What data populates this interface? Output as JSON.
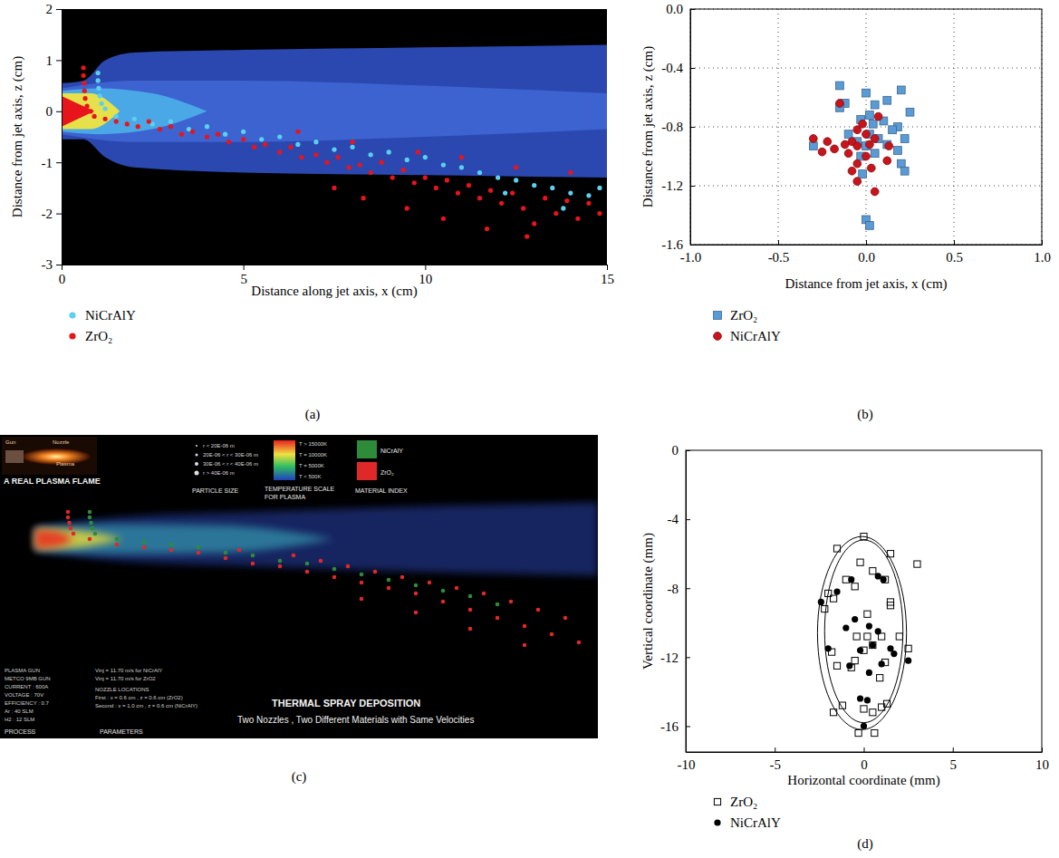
{
  "chart_data": [
    {
      "type": "scatter",
      "panel_label": "(a)",
      "x_label": "Distance along jet axis, x (cm)",
      "y_label": "Distance from jet axis, z (cm)",
      "xlim": [
        0,
        15
      ],
      "xticks": [
        0,
        5,
        10,
        15
      ],
      "ylim": [
        -3,
        2
      ],
      "yticks": [
        -3,
        -2,
        -1,
        0,
        1,
        2
      ],
      "legend": "bottom",
      "plume": [
        {
          "color": "#2b48b0",
          "x": [
            0,
            0.6,
            1.2,
            2,
            5,
            10,
            15
          ],
          "upper": [
            0.55,
            0.6,
            1.0,
            1.15,
            1.2,
            1.25,
            1.3
          ],
          "lower": [
            -0.55,
            -0.55,
            -0.9,
            -1.1,
            -1.2,
            -1.25,
            -1.3
          ]
        },
        {
          "color": "#3c63d0",
          "x": [
            0,
            2,
            5,
            10,
            15
          ],
          "upper": [
            0.45,
            0.6,
            0.6,
            0.5,
            0.35
          ],
          "lower": [
            -0.45,
            -0.6,
            -0.6,
            -0.5,
            -0.35
          ]
        },
        {
          "color": "#4aa8e6",
          "x": [
            0,
            1,
            2.5,
            4
          ],
          "upper": [
            0.4,
            0.45,
            0.35,
            0
          ],
          "lower": [
            -0.4,
            -0.45,
            -0.35,
            0
          ]
        },
        {
          "color": "#e6e04a",
          "x": [
            0,
            0.8,
            1.6
          ],
          "upper": [
            0.35,
            0.35,
            0
          ],
          "lower": [
            -0.35,
            -0.35,
            0
          ]
        },
        {
          "color": "#e8141c",
          "x": [
            0,
            0.9
          ],
          "upper": [
            0.3,
            0
          ],
          "lower": [
            -0.3,
            0
          ]
        }
      ],
      "series": [
        {
          "name": "NiCrAlY",
          "color": "#5cd0f0",
          "marker": "circle",
          "x": [
            1.0,
            1.0,
            1.02,
            1.05,
            1.1,
            1.2,
            1.5,
            2,
            2.5,
            3,
            3.5,
            4,
            4.5,
            5,
            5.5,
            6,
            6.5,
            7,
            7.5,
            8,
            8.5,
            9,
            9.5,
            10,
            10.5,
            11,
            11.5,
            12,
            12.5,
            13,
            13.5,
            14,
            14.5,
            14.8,
            12.2,
            13.8
          ],
          "values": [
            0.75,
            0.6,
            0.45,
            0.3,
            0.15,
            0.05,
            -0.1,
            -0.15,
            -0.25,
            -0.2,
            -0.35,
            -0.3,
            -0.45,
            -0.4,
            -0.55,
            -0.5,
            -0.65,
            -0.6,
            -0.75,
            -0.7,
            -0.85,
            -0.8,
            -0.95,
            -0.9,
            -1.05,
            -1.1,
            -1.2,
            -1.3,
            -1.35,
            -1.45,
            -1.5,
            -1.6,
            -1.65,
            -1.5,
            -1.6,
            -1.9
          ]
        },
        {
          "name": "ZrO₂",
          "color": "#e8141c",
          "marker": "circle",
          "x": [
            0.6,
            0.6,
            0.62,
            0.63,
            0.65,
            0.7,
            0.8,
            0.9,
            1.2,
            1.5,
            1.8,
            2.1,
            2.4,
            2.7,
            3,
            3.3,
            3.6,
            4,
            4.3,
            4.6,
            5,
            5.3,
            5.6,
            6,
            6.3,
            6.6,
            7,
            7.3,
            7.6,
            7.9,
            8.2,
            8.5,
            8.8,
            9.1,
            9.4,
            9.7,
            10,
            10.3,
            10.6,
            10.9,
            11.2,
            11.5,
            11.8,
            12.1,
            12.4,
            12.7,
            13,
            13.3,
            13.6,
            13.9,
            14.2,
            14.5,
            14.8,
            7.5,
            8.3,
            9.5,
            10.5,
            11.7,
            12.8,
            6.5,
            8,
            9.8,
            11,
            12.5,
            14
          ],
          "values": [
            0.85,
            0.7,
            0.55,
            0.4,
            0.25,
            0.1,
            0.0,
            -0.1,
            -0.15,
            -0.2,
            -0.25,
            -0.3,
            -0.2,
            -0.35,
            -0.3,
            -0.45,
            -0.4,
            -0.5,
            -0.45,
            -0.6,
            -0.55,
            -0.7,
            -0.65,
            -0.8,
            -0.7,
            -0.9,
            -0.85,
            -1.0,
            -0.9,
            -1.1,
            -1.05,
            -1.2,
            -1.0,
            -1.3,
            -1.15,
            -1.4,
            -1.3,
            -1.5,
            -1.35,
            -1.6,
            -1.45,
            -1.7,
            -1.55,
            -1.8,
            -1.6,
            -1.9,
            -2.2,
            -1.7,
            -2.0,
            -1.75,
            -2.1,
            -1.8,
            -2.0,
            -1.5,
            -1.7,
            -1.9,
            -2.1,
            -2.3,
            -2.45,
            -0.4,
            -0.6,
            -0.8,
            -0.9,
            -1.1,
            -1.2
          ]
        }
      ]
    },
    {
      "type": "scatter",
      "panel_label": "(b)",
      "x_label": "Distance from jet axis, x (cm)",
      "y_label": "Distance from jet axis, z (cm)",
      "xlim": [
        -1,
        1
      ],
      "xticks": [
        {
          "value": -1,
          "label": "-1.0"
        },
        -0.5,
        {
          "value": 0,
          "label": "0.0"
        },
        0.5,
        {
          "value": 1,
          "label": "1.0"
        }
      ],
      "ylim": [
        -1.6,
        0
      ],
      "yticks": [
        -1.6,
        -1.2,
        -0.8,
        -0.4,
        {
          "value": 0,
          "label": "0.0"
        }
      ],
      "grid": true,
      "legend": "bottom",
      "series": [
        {
          "name": "ZrO₂",
          "color": "#5b9bd5",
          "marker": "square",
          "x": [
            -0.15,
            0.2,
            0,
            -0.12,
            0.05,
            0.12,
            -0.15,
            0.25,
            0.02,
            -0.03,
            0.1,
            0.04,
            0.18,
            -0.1,
            0.02,
            0.15,
            -0.05,
            0.07,
            0.22,
            -0.3,
            0,
            0.12,
            0.18,
            0.05,
            -0.03,
            0.2,
            0.22,
            -0.02,
            0,
            0.02
          ],
          "values": [
            -0.52,
            -0.55,
            -0.57,
            -0.64,
            -0.65,
            -0.62,
            -0.67,
            -0.7,
            -0.72,
            -0.75,
            -0.76,
            -0.78,
            -0.8,
            -0.85,
            -0.85,
            -0.82,
            -0.9,
            -0.88,
            -0.88,
            -0.93,
            -0.93,
            -0.92,
            -0.96,
            -0.98,
            -1.0,
            -1.05,
            -1.1,
            -1.12,
            -1.43,
            -1.47
          ]
        },
        {
          "name": "NiCrAlY",
          "color": "#c8141c",
          "marker": "circle",
          "x": [
            -0.15,
            0.07,
            -0.02,
            -0.05,
            0,
            -0.3,
            -0.22,
            -0.08,
            0.05,
            -0.18,
            -0.12,
            -0.05,
            0.02,
            0.13,
            -0.25,
            -0.1,
            0,
            -0.05,
            0.12,
            -0.08,
            0.03,
            -0.05,
            0.05
          ],
          "values": [
            -0.64,
            -0.73,
            -0.78,
            -0.82,
            -0.85,
            -0.88,
            -0.9,
            -0.9,
            -0.88,
            -0.95,
            -0.92,
            -0.93,
            -0.92,
            -0.93,
            -0.97,
            -0.98,
            -1.0,
            -1.05,
            -1.03,
            -1.1,
            -1.08,
            -1.17,
            -1.24
          ]
        }
      ]
    },
    {
      "type": "scatter",
      "panel_label": "(c)",
      "tick_labels": false,
      "xlim": [
        -1.3,
        20.7
      ],
      "ylim": [
        -7.33,
        3.83
      ],
      "legend": "top",
      "annotations": [
        "Gun",
        "Nozzle",
        "Plasma",
        "A REAL PLASMA FLAME",
        "r < 20E-06 m",
        "20E-06 < r < 30E-06 m",
        "30E-06 < r < 40E-06 m",
        "r > 40E-06 m",
        "PARTICLE SIZE",
        "T > 15000K",
        "T = 10000K",
        "T = 5000K",
        "T < 500K",
        "TEMPERATURE SCALE",
        "FOR PLASMA",
        "MATERIAL INDEX",
        "PLASMA GUN",
        "METCO 9MB GUN",
        "CURRENT : 600A",
        "VOLTAGE : 70V",
        "EFFICIENCY : 0.7",
        "Ar : 40 SLM",
        "H2 : 12 SLM",
        "PROCESS",
        "PARAMETERS",
        "Vinj = 11.70 m/s for NiCrAlY",
        "Vinj = 11.70 m/s for ZrO2",
        "NOZZLE LOCATIONS",
        "First : x = 0.6 cm , z = 0.6 cm (ZrO2)",
        "Second : x = 1.0 cm , z = 0.6 cm (NiCrAlY)",
        "THERMAL SPRAY DEPOSITION",
        "Two Nozzles , Two Different Materials with Same Velocities"
      ],
      "plume": [
        {
          "color": "#1c2f78",
          "x": [
            0,
            3,
            8,
            14,
            20.7
          ],
          "upper": [
            0.45,
            0.8,
            1.0,
            1.2,
            1.35
          ],
          "lower": [
            -0.45,
            -0.8,
            -1.0,
            -1.2,
            -1.35
          ]
        },
        {
          "color": "#2f7f9f",
          "x": [
            0,
            3,
            7,
            11
          ],
          "upper": [
            0.4,
            0.55,
            0.5,
            0
          ],
          "lower": [
            -0.4,
            -0.55,
            -0.5,
            0
          ]
        },
        {
          "color": "#d8d040",
          "x": [
            0,
            1.5,
            3.2
          ],
          "upper": [
            0.38,
            0.32,
            0
          ],
          "lower": [
            -0.38,
            -0.32,
            0
          ]
        },
        {
          "color": "#e83020",
          "x": [
            0,
            0.8,
            1.4
          ],
          "upper": [
            0.35,
            0.28,
            0
          ],
          "lower": [
            -0.35,
            -0.28,
            0
          ]
        }
      ],
      "series": [
        {
          "name": "NiCrAlY",
          "color": "#2e8b3a",
          "marker": "circle",
          "x": [
            2.0,
            2.0,
            2.05,
            2.1,
            2.2,
            3,
            4,
            5,
            6,
            7,
            8,
            9,
            10,
            11,
            12,
            13,
            14,
            15,
            16,
            17
          ],
          "values": [
            1.0,
            0.8,
            0.6,
            0.4,
            0.2,
            0,
            -0.1,
            -0.2,
            -0.3,
            -0.5,
            -0.6,
            -0.8,
            -0.9,
            -1.1,
            -1.3,
            -1.5,
            -1.7,
            -1.9,
            -2.1,
            -2.4
          ]
        },
        {
          "name": "ZrO₂",
          "color": "#e02828",
          "marker": "circle",
          "x": [
            1.2,
            1.2,
            1.25,
            1.3,
            1.4,
            2,
            3,
            4,
            5,
            6,
            7,
            7.5,
            8,
            9,
            9.5,
            10,
            10.5,
            11,
            11.5,
            12,
            12.5,
            13,
            13.5,
            14,
            14.5,
            15,
            15.5,
            16,
            16.5,
            17,
            17.5,
            18,
            18.5,
            19,
            19.5,
            20,
            12,
            14,
            16,
            18
          ],
          "values": [
            1.0,
            0.8,
            0.6,
            0.4,
            0.2,
            0,
            -0.2,
            -0.3,
            -0.4,
            -0.5,
            -0.7,
            -0.4,
            -0.9,
            -1.0,
            -0.6,
            -1.2,
            -0.8,
            -1.4,
            -1.0,
            -1.6,
            -1.2,
            -1.8,
            -1.4,
            -2.0,
            -1.6,
            -2.3,
            -1.8,
            -2.6,
            -2.0,
            -2.9,
            -2.3,
            -3.2,
            -2.6,
            -3.5,
            -2.9,
            -3.8,
            -2.2,
            -2.7,
            -3.3,
            -3.9
          ]
        }
      ]
    },
    {
      "type": "scatter",
      "panel_label": "(d)",
      "x_label": "Horizontal coordinate (mm)",
      "y_label": "Vertical coordinate (mm)",
      "xlim": [
        -10,
        10
      ],
      "xticks": [
        -10,
        -5,
        0,
        5,
        10
      ],
      "ylim": [
        -17.5,
        0
      ],
      "yticks": [
        -16,
        -12,
        -8,
        -4,
        0
      ],
      "legend": "bottom",
      "ellipses": [
        {
          "cx": -0.1,
          "cy": -10.6,
          "rx": 2.5,
          "ry": 5.6
        },
        {
          "cx": 0,
          "cy": -10.5,
          "rx": 2.2,
          "ry": 5.3
        }
      ],
      "series": [
        {
          "name": "ZrO₂",
          "color": "#000000",
          "marker": "square-open",
          "x": [
            0,
            -1.5,
            1.5,
            3,
            -0.2,
            0.5,
            -1,
            -0.5,
            1.2,
            -2,
            -1.7,
            1.5,
            -2.2,
            0.2,
            1.5,
            -0.4,
            0.2,
            1,
            2,
            0.5,
            -1.8,
            0,
            -0.5,
            -0.7,
            1.2,
            -1.2,
            1,
            1.3,
            -1.7,
            0.5,
            0,
            -0.3,
            0.6,
            -1.5,
            2.5,
            0.9
          ],
          "values": [
            -5,
            -5.7,
            -6,
            -6.6,
            -6.5,
            -7,
            -7.5,
            -7.9,
            -7.5,
            -8.3,
            -8.6,
            -8.8,
            -9.2,
            -9.5,
            -9,
            -10.8,
            -10.8,
            -10.8,
            -10.8,
            -11.3,
            -11.7,
            -11.6,
            -12.2,
            -12.6,
            -12.3,
            -14.8,
            -14.9,
            -14.7,
            -15.2,
            -15.2,
            -15,
            -16.4,
            -16.4,
            -12.5,
            -11.5,
            -13.2
          ]
        },
        {
          "name": "NiCrAlY",
          "color": "#000000",
          "marker": "circle",
          "x": [
            -0.7,
            0.8,
            1.1,
            -1.5,
            -2.4,
            -0.5,
            0.3,
            -1,
            0.8,
            -2,
            1.5,
            -0.2,
            0.5,
            2.5,
            1.7,
            -0.8,
            0.3,
            1,
            -0.2,
            0.2,
            0
          ],
          "values": [
            -7.5,
            -7.3,
            -7.5,
            -8.2,
            -8.8,
            -9.8,
            -10.2,
            -10.3,
            -10.5,
            -11.5,
            -11.5,
            -11.6,
            -11.3,
            -12.2,
            -11.8,
            -12.5,
            -12.9,
            -12.4,
            -14.4,
            -14.5,
            -16
          ]
        }
      ]
    }
  ]
}
